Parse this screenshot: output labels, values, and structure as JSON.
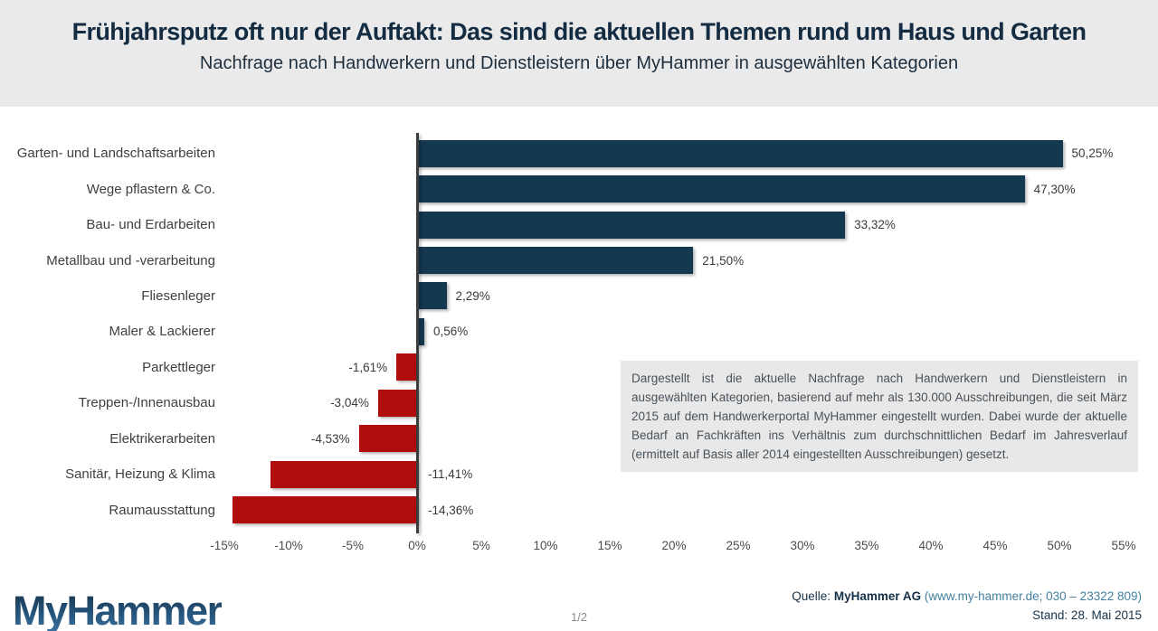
{
  "header": {
    "title": "Frühjahrsputz oft nur der Auftakt: Das sind die aktuellen Themen rund um Haus und Garten",
    "subtitle": "Nachfrage nach Handwerkern und Dienstleistern über MyHammer in ausgewählten Kategorien"
  },
  "chart_data": {
    "type": "bar",
    "orientation": "horizontal",
    "title": "Nachfrage nach Handwerkern und Dienstleistern über MyHammer in ausgewählten Kategorien",
    "categories": [
      "Garten- und Landschaftsarbeiten",
      "Wege pflastern & Co.",
      "Bau- und Erdarbeiten",
      "Metallbau und -verarbeitung",
      "Fliesenleger",
      "Maler & Lackierer",
      "Parkettleger",
      "Treppen-/Innenausbau",
      "Elektrikerarbeiten",
      "Sanitär, Heizung & Klima",
      "Raumausstattung"
    ],
    "values": [
      50.25,
      47.3,
      33.32,
      21.5,
      2.29,
      0.56,
      -1.61,
      -3.04,
      -4.53,
      -11.41,
      -14.36
    ],
    "value_labels": [
      "50,25%",
      "47,30%",
      "33,32%",
      "21,50%",
      "2,29%",
      "0,56%",
      "-1,61%",
      "-3,04%",
      "-4,53%",
      "-11,41%",
      "-14,36%"
    ],
    "xlim": [
      -15,
      55
    ],
    "ticks": [
      -15,
      -10,
      -5,
      0,
      5,
      10,
      15,
      20,
      25,
      30,
      35,
      40,
      45,
      50,
      55
    ],
    "tick_labels": [
      "-15%",
      "-10%",
      "-5%",
      "0%",
      "5%",
      "10%",
      "15%",
      "20%",
      "25%",
      "30%",
      "35%",
      "40%",
      "45%",
      "50%",
      "55%"
    ],
    "grid": false,
    "legend": "none",
    "positive_color": "#14384f",
    "negative_color": "#b00d0d",
    "axis_color": "#3c3c3c"
  },
  "note": {
    "text": "Dargestellt ist die aktuelle Nachfrage nach Handwerkern und Dienstleistern in ausgewählten Kategorien, basierend auf mehr als 130.000 Ausschreibungen, die seit März 2015 auf dem Handwerkerportal MyHammer eingestellt wurden. Dabei wurde der aktuelle Bedarf an Fachkräften ins Verhältnis zum durchschnittlichen Bedarf im Jahresverlauf (ermittelt auf Basis aller 2014 eingestellten Ausschreibungen) gesetzt."
  },
  "footer": {
    "logo_text": "MyHammer",
    "page": "1/2",
    "source_prefix": "Quelle:",
    "source_name": "MyHammer AG",
    "source_contact": "(www.my-hammer.de; 030 – 23322 809)",
    "stand": "Stand: 28. Mai 2015"
  }
}
